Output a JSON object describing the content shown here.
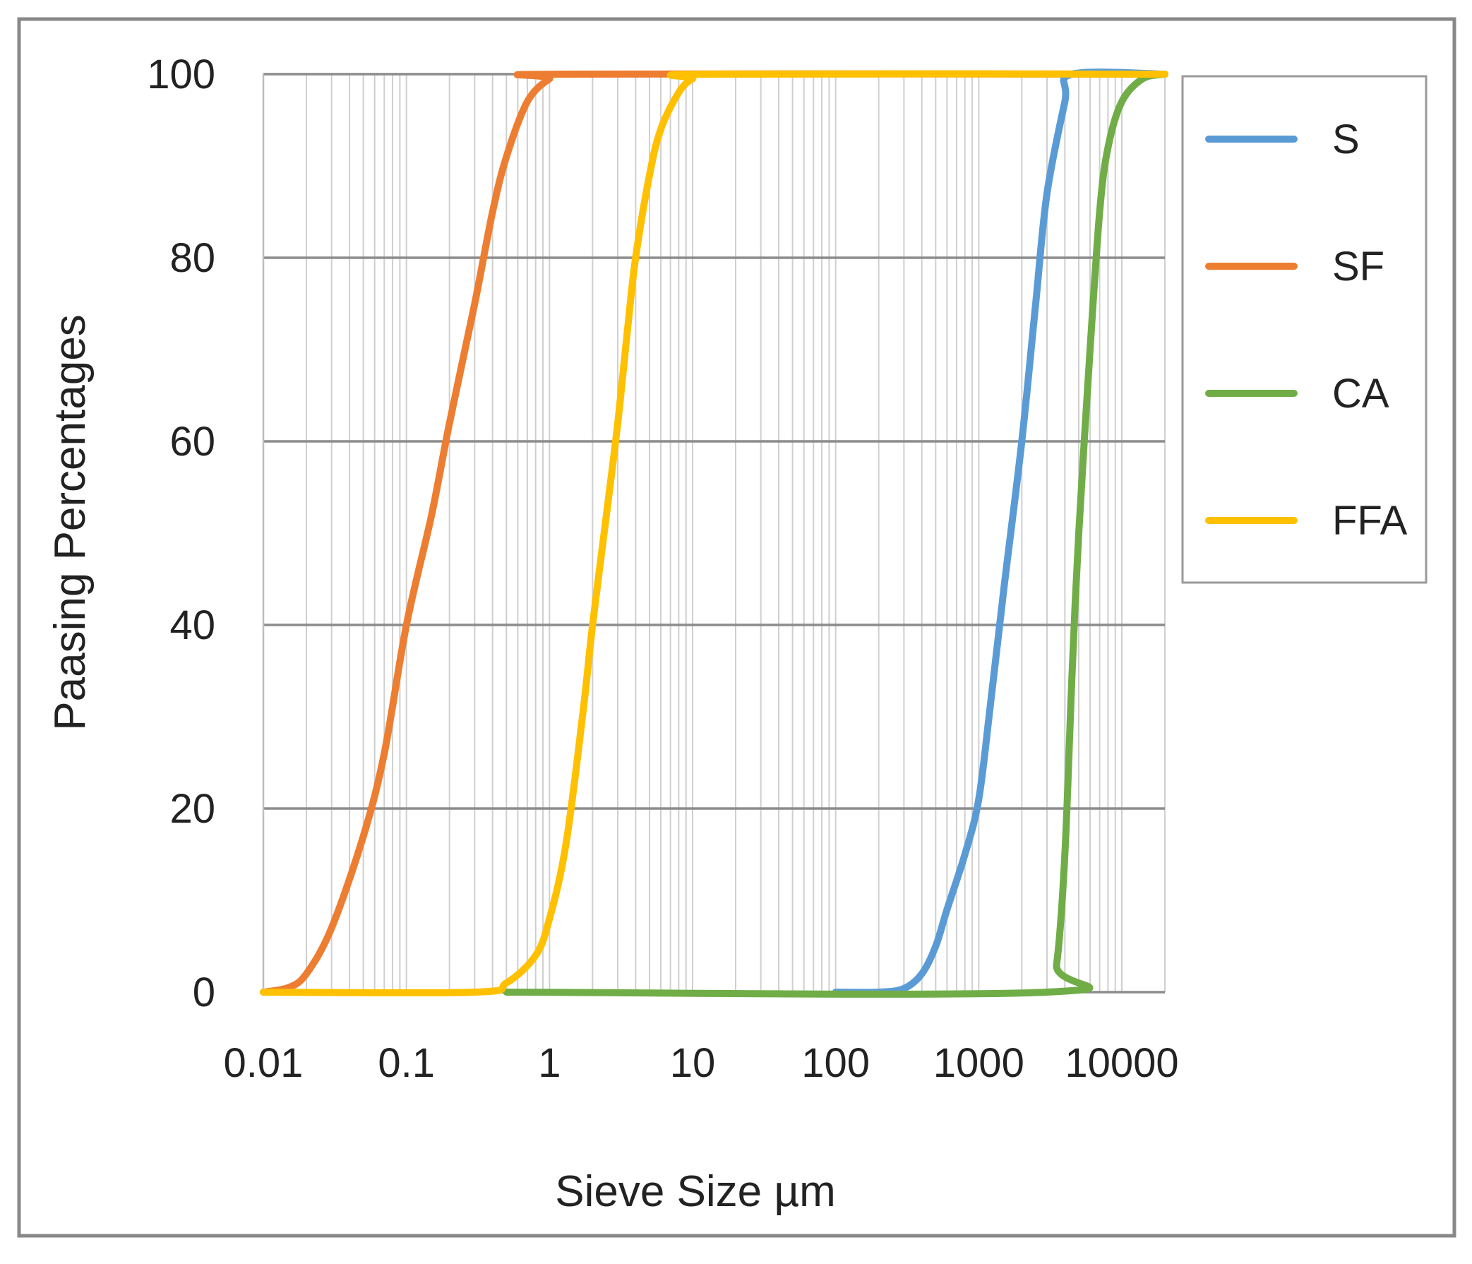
{
  "chart_data": {
    "type": "line",
    "xscale": "log",
    "xlim": [
      0.01,
      20000
    ],
    "ylim": [
      0,
      100
    ],
    "xlabel": "Sieve Size µm",
    "ylabel": "Paasing Percentages",
    "grid": "on",
    "legend_position": "right",
    "x_ticks": [
      0.01,
      0.1,
      1,
      10,
      100,
      1000,
      10000
    ],
    "x_tick_labels": [
      "0.01",
      "0.1",
      "1",
      "10",
      "100",
      "1000",
      "10000"
    ],
    "y_ticks": [
      0,
      20,
      40,
      60,
      80,
      100
    ],
    "y_tick_labels": [
      "0",
      "20",
      "40",
      "60",
      "80",
      "100"
    ],
    "series": [
      {
        "name": "S",
        "color": "#5B9BD5",
        "points": [
          [
            100,
            0
          ],
          [
            200,
            0
          ],
          [
            300,
            0.4
          ],
          [
            400,
            2
          ],
          [
            500,
            5
          ],
          [
            600,
            9
          ],
          [
            800,
            15
          ],
          [
            1000,
            21
          ],
          [
            1200,
            31
          ],
          [
            1500,
            44
          ],
          [
            2000,
            60
          ],
          [
            2500,
            75
          ],
          [
            3000,
            87
          ],
          [
            4000,
            97
          ],
          [
            4500,
            100
          ],
          [
            20000,
            100
          ]
        ]
      },
      {
        "name": "SF",
        "color": "#ED7D31",
        "points": [
          [
            0.01,
            0
          ],
          [
            0.015,
            0.5
          ],
          [
            0.02,
            2
          ],
          [
            0.03,
            7
          ],
          [
            0.05,
            17
          ],
          [
            0.07,
            26
          ],
          [
            0.1,
            40
          ],
          [
            0.15,
            52
          ],
          [
            0.2,
            62
          ],
          [
            0.3,
            75
          ],
          [
            0.4,
            85
          ],
          [
            0.5,
            91
          ],
          [
            0.7,
            97
          ],
          [
            1,
            99.5
          ],
          [
            1.3,
            100
          ],
          [
            20000,
            100
          ]
        ]
      },
      {
        "name": "CA",
        "color": "#70AD47",
        "points": [
          [
            0.5,
            0
          ],
          [
            3000,
            0
          ],
          [
            3500,
            3
          ],
          [
            4000,
            15
          ],
          [
            4500,
            35
          ],
          [
            5000,
            50
          ],
          [
            6000,
            70
          ],
          [
            7000,
            85
          ],
          [
            8000,
            92
          ],
          [
            10000,
            97
          ],
          [
            14000,
            99.5
          ],
          [
            20000,
            100
          ]
        ]
      },
      {
        "name": "FFA",
        "color": "#FFC000",
        "points": [
          [
            0.01,
            0
          ],
          [
            0.3,
            0
          ],
          [
            0.5,
            1
          ],
          [
            0.8,
            4
          ],
          [
            1,
            8
          ],
          [
            1.3,
            16
          ],
          [
            1.7,
            30
          ],
          [
            2,
            40
          ],
          [
            2.5,
            52
          ],
          [
            3,
            62
          ],
          [
            3.5,
            72
          ],
          [
            4,
            80
          ],
          [
            5,
            89
          ],
          [
            6,
            94
          ],
          [
            8,
            98
          ],
          [
            10,
            99.5
          ],
          [
            13,
            100
          ],
          [
            20000,
            100
          ]
        ]
      }
    ]
  }
}
